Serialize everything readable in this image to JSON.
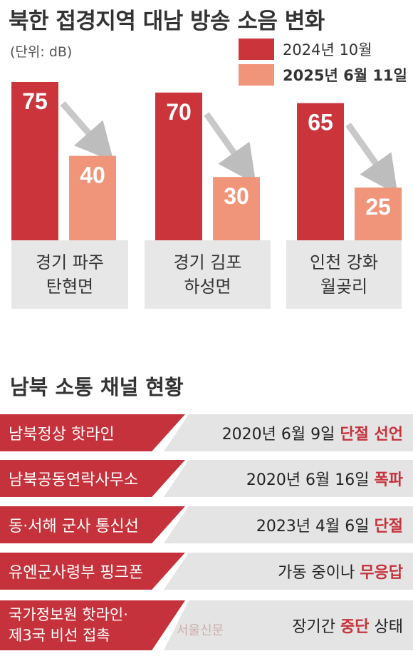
{
  "chart_data": {
    "type": "bar",
    "title": "북한 접경지역 대남 방송 소음 변화",
    "unit": "(단위: dB)",
    "categories": [
      "경기 파주\n탄현면",
      "경기 김포\n하성면",
      "인천 강화\n월곶리"
    ],
    "series": [
      {
        "name": "2024년 10월",
        "values": [
          75,
          70,
          65
        ],
        "color": "#cc343b"
      },
      {
        "name": "2025년 6월 11일",
        "values": [
          40,
          30,
          25
        ],
        "color": "#f0957a"
      }
    ],
    "value_labels": [
      [
        "75",
        "70",
        "65"
      ],
      [
        "40",
        "30",
        "25"
      ]
    ],
    "ylim": [
      0,
      80
    ],
    "legend_position": "top-right",
    "grid": false
  },
  "section": {
    "title": "남북 소통 채널 현황",
    "rows": [
      {
        "name": "남북정상 핫라인",
        "status_pre": "2020년 6월 9일 ",
        "status_em": "단절 선언",
        "status_post": ""
      },
      {
        "name": "남북공동연락사무소",
        "status_pre": "2020년 6월 16일 ",
        "status_em": "폭파",
        "status_post": ""
      },
      {
        "name": "동·서해 군사 통신선",
        "status_pre": "2023년 4월 6일 ",
        "status_em": "단절",
        "status_post": ""
      },
      {
        "name": "유엔군사령부 핑크폰",
        "status_pre": "가동 중이나 ",
        "status_em": "무응답",
        "status_post": ""
      },
      {
        "name": "국가정보원 핫라인·\n제3국 비선 접촉",
        "status_pre": "장기간 ",
        "status_em": "중단",
        "status_post": " 상태"
      }
    ]
  },
  "watermark": "서울신문",
  "colors": {
    "accent_red": "#c6323b",
    "light_gray": "#e4e4e4"
  }
}
